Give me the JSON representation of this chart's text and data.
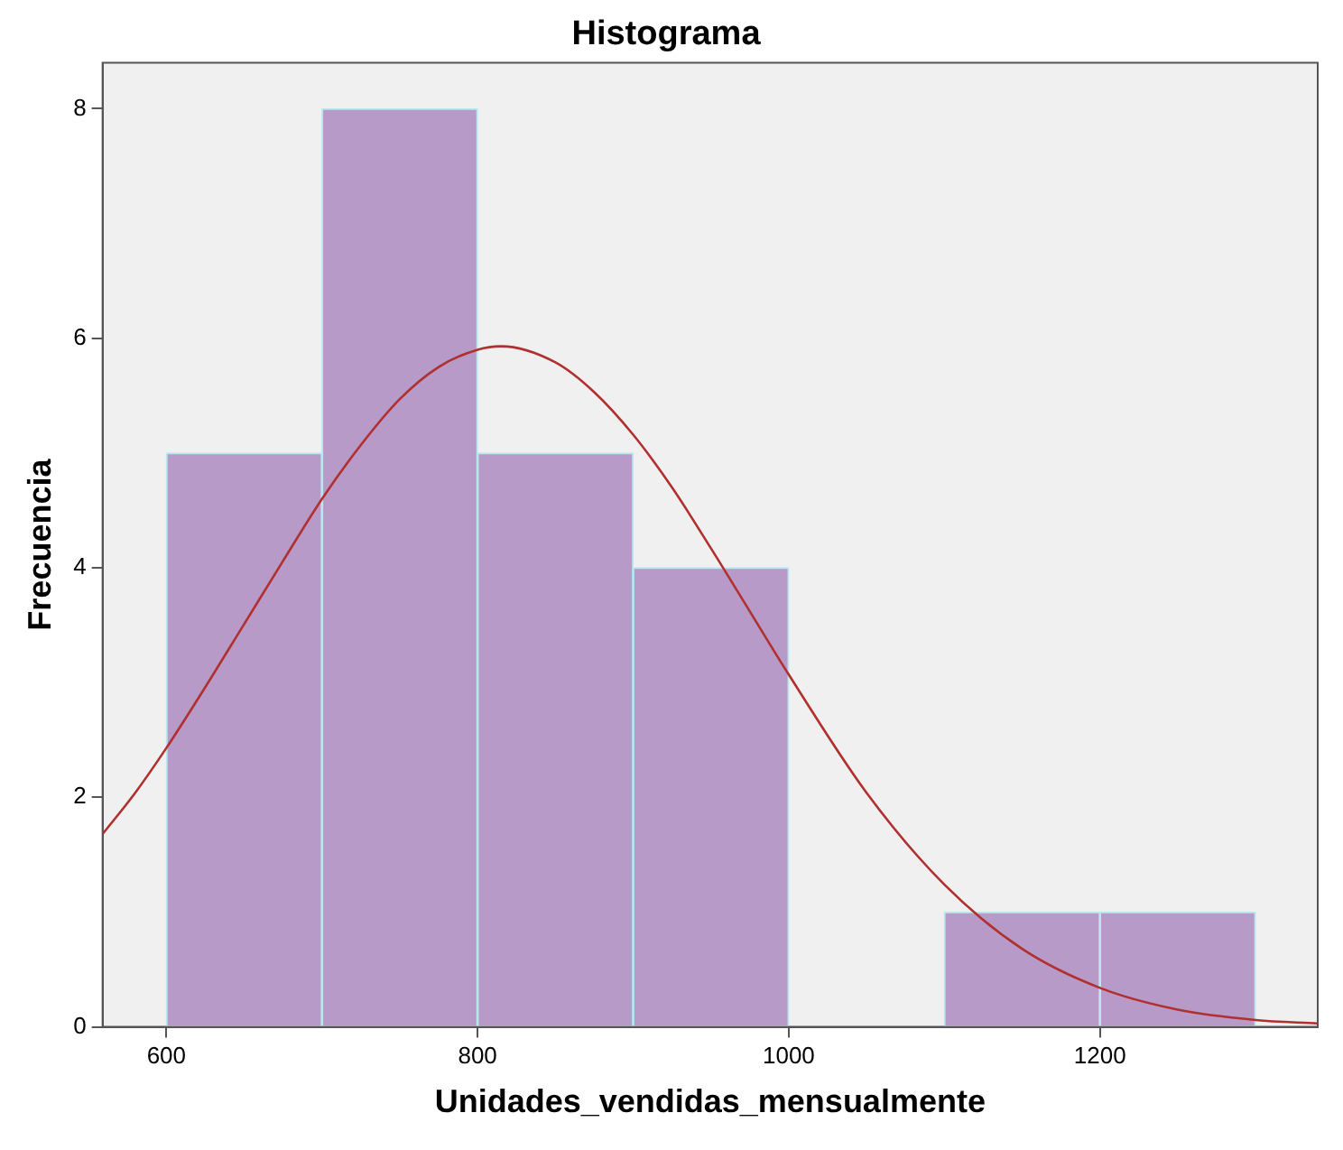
{
  "chart_data": {
    "type": "histogram",
    "title": "Histograma",
    "xlabel": "Unidades_vendidas_mensualmente",
    "ylabel": "Frecuencia",
    "bins": [
      600,
      700,
      800,
      900,
      1000,
      1100,
      1200,
      1300
    ],
    "values": [
      5,
      8,
      5,
      4,
      0,
      1,
      1
    ],
    "color": "#b89ac8",
    "series": [
      {
        "type": "line",
        "color": "#b03030",
        "x": [
          559,
          580,
          600,
          625,
          650,
          675,
          700,
          725,
          750,
          775,
          800,
          815,
          850,
          875,
          900,
          925,
          950,
          975,
          1000,
          1050,
          1100,
          1150,
          1200,
          1250,
          1300,
          1340
        ],
        "values": [
          1.68,
          2.04,
          2.43,
          2.96,
          3.51,
          4.06,
          4.6,
          5.07,
          5.47,
          5.75,
          5.9,
          5.93,
          5.79,
          5.53,
          5.16,
          4.7,
          4.17,
          3.62,
          3.07,
          2.04,
          1.24,
          0.68,
          0.34,
          0.15,
          0.06,
          0.03
        ]
      }
    ],
    "xlim": [
      559,
      1340
    ],
    "ylim": [
      0,
      8.4
    ],
    "xticks": [
      600,
      800,
      1000,
      1200
    ],
    "yticks": [
      0,
      2,
      4,
      6,
      8
    ],
    "grid": false,
    "legend": false,
    "marker": "none"
  }
}
